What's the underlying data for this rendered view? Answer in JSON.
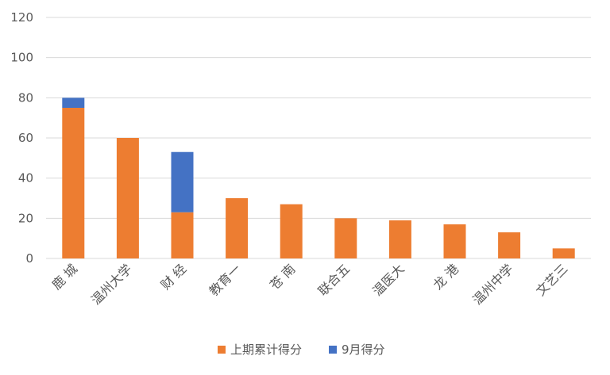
{
  "chart_data": {
    "type": "bar",
    "stacked": true,
    "title": "",
    "xlabel": "",
    "ylabel": "",
    "ylim": [
      0,
      120
    ],
    "yticks": [
      0,
      20,
      40,
      60,
      80,
      100,
      120
    ],
    "grid": true,
    "legend_position": "bottom",
    "categories": [
      "鹿 城",
      "温州大学",
      "财 经",
      "教育一",
      "苍 南",
      "联合五",
      "温医大",
      "龙 港",
      "温州中学",
      "文艺三"
    ],
    "series": [
      {
        "name": "上期累计得分",
        "color": "#ED7D31",
        "values": [
          75,
          60,
          23,
          30,
          27,
          20,
          19,
          17,
          13,
          5
        ]
      },
      {
        "name": "9月得分",
        "color": "#4472C4",
        "values": [
          5,
          0,
          30,
          0,
          0,
          0,
          0,
          0,
          0,
          0
        ]
      }
    ]
  }
}
